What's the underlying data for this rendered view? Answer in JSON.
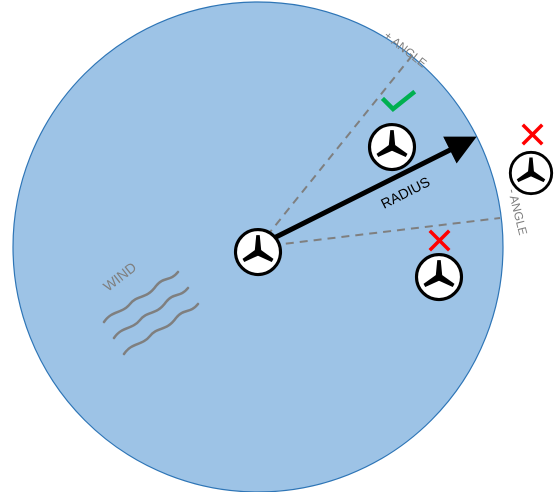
{
  "labels": {
    "plus_angle": "+ ANGLE",
    "minus_angle": "- ANGLE",
    "radius": "RADIUS",
    "wind": "WIND"
  },
  "colors": {
    "zone_fill": "#9dc3e6",
    "zone_stroke": "#2e75b6",
    "dashed_line": "#7f7f7f",
    "arrow": "#000000",
    "check": "#00b050",
    "cross": "#ff0000",
    "wind": "#7f7f7f"
  },
  "icons": {
    "turbine": "wind-turbine-icon",
    "accepted": "check-mark-icon",
    "rejected": "cross-mark-icon"
  },
  "turbines": [
    {
      "role": "center",
      "status": "none"
    },
    {
      "role": "inside-angle",
      "status": "accepted"
    },
    {
      "role": "outside-circle",
      "status": "rejected"
    },
    {
      "role": "outside-angle",
      "status": "rejected"
    }
  ]
}
